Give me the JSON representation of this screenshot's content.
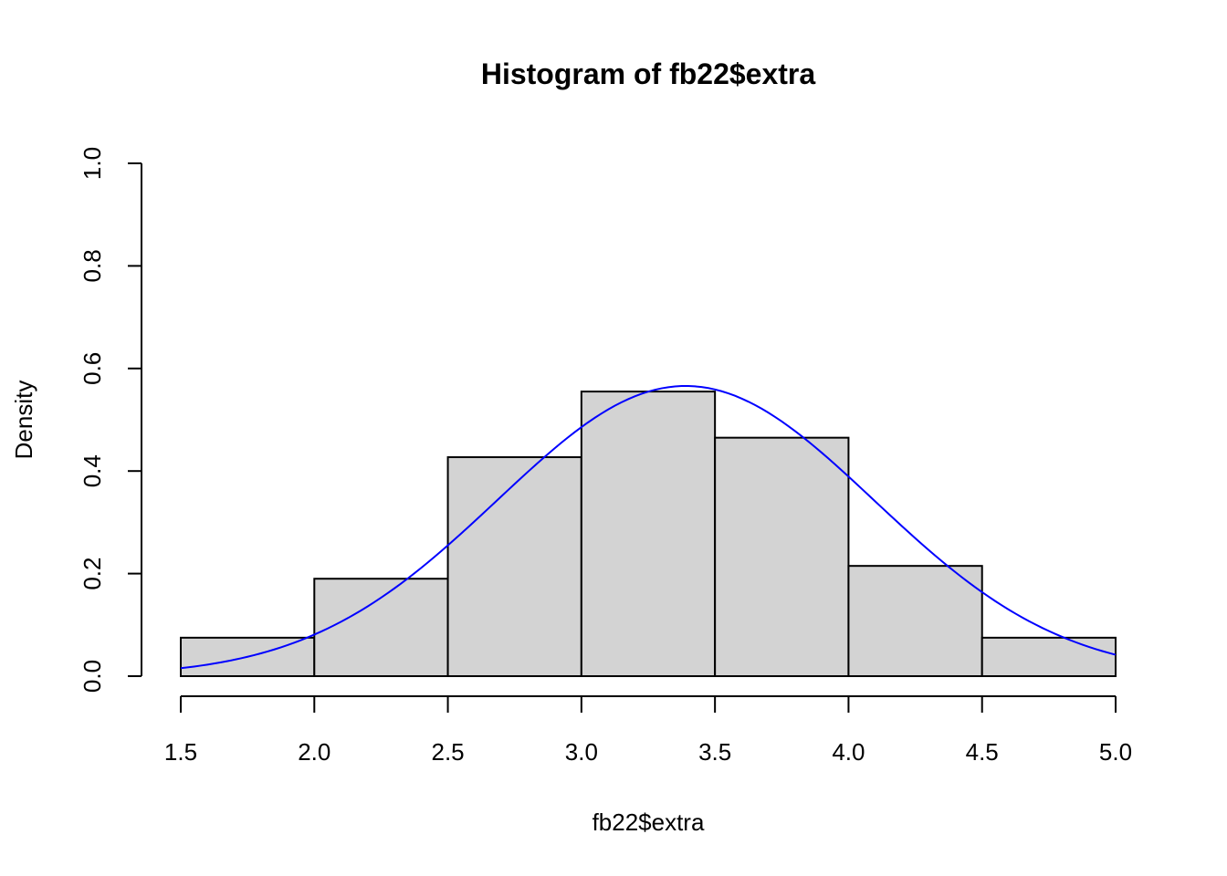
{
  "chart_data": {
    "type": "bar",
    "title": "Histogram of fb22$extra",
    "xlabel": "fb22$extra",
    "ylabel": "Density",
    "bins": [
      {
        "from": 1.5,
        "to": 2.0,
        "density": 0.075
      },
      {
        "from": 2.0,
        "to": 2.5,
        "density": 0.19
      },
      {
        "from": 2.5,
        "to": 3.0,
        "density": 0.427
      },
      {
        "from": 3.0,
        "to": 3.5,
        "density": 0.555
      },
      {
        "from": 3.5,
        "to": 4.0,
        "density": 0.465
      },
      {
        "from": 4.0,
        "to": 4.5,
        "density": 0.215
      },
      {
        "from": 4.5,
        "to": 5.0,
        "density": 0.075
      }
    ],
    "xlim": [
      1.5,
      5.0
    ],
    "ylim": [
      0,
      1.0
    ],
    "x_ticks": [
      "1.5",
      "2.0",
      "2.5",
      "3.0",
      "3.5",
      "4.0",
      "4.5",
      "5.0"
    ],
    "y_ticks": [
      "0.0",
      "0.2",
      "0.4",
      "0.6",
      "0.8",
      "1.0"
    ],
    "density_curve": {
      "type": "normal",
      "mean": 3.39,
      "sd": 0.705,
      "color": "#0000ff"
    },
    "bar_fill": "#d3d3d3",
    "bar_stroke": "#000000",
    "grid": false,
    "legend": "none"
  }
}
